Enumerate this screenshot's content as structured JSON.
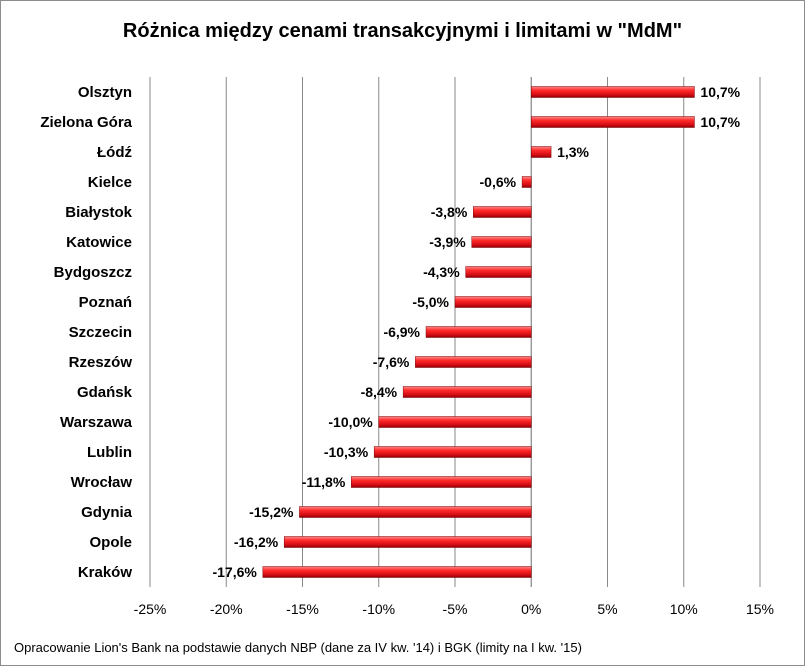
{
  "chart_data": {
    "type": "bar",
    "orientation": "horizontal",
    "title": "Różnica między cenami transakcyjnymi i limitami w \"MdM\"",
    "categories": [
      "Olsztyn",
      "Zielona Góra",
      "Łódź",
      "Kielce",
      "Białystok",
      "Katowice",
      "Bydgoszcz",
      "Poznań",
      "Szczecin",
      "Rzeszów",
      "Gdańsk",
      "Warszawa",
      "Lublin",
      "Wrocław",
      "Gdynia",
      "Opole",
      "Kraków"
    ],
    "values": [
      10.7,
      10.7,
      1.3,
      -0.6,
      -3.8,
      -3.9,
      -4.3,
      -5.0,
      -6.9,
      -7.6,
      -8.4,
      -10.0,
      -10.3,
      -11.8,
      -15.2,
      -16.2,
      -17.6
    ],
    "data_labels": [
      "10,7%",
      "10,7%",
      "1,3%",
      "-0,6%",
      "-3,8%",
      "-3,9%",
      "-4,3%",
      "-5,0%",
      "-6,9%",
      "-7,6%",
      "-8,4%",
      "-10,0%",
      "-10,3%",
      "-11,8%",
      "-15,2%",
      "-16,2%",
      "-17,6%"
    ],
    "xlim": [
      -25,
      15
    ],
    "xticks": [
      -25,
      -20,
      -15,
      -10,
      -5,
      0,
      5,
      10,
      15
    ],
    "xtick_labels": [
      "-25%",
      "-20%",
      "-15%",
      "-10%",
      "-5%",
      "0%",
      "5%",
      "10%",
      "15%"
    ],
    "grid": true,
    "bar_color": "#e8121b",
    "legend": "none"
  },
  "footnote": "Opracowanie Lion's Bank na podstawie danych  NBP (dane za IV kw. '14) i BGK (limity na I kw. '15)"
}
